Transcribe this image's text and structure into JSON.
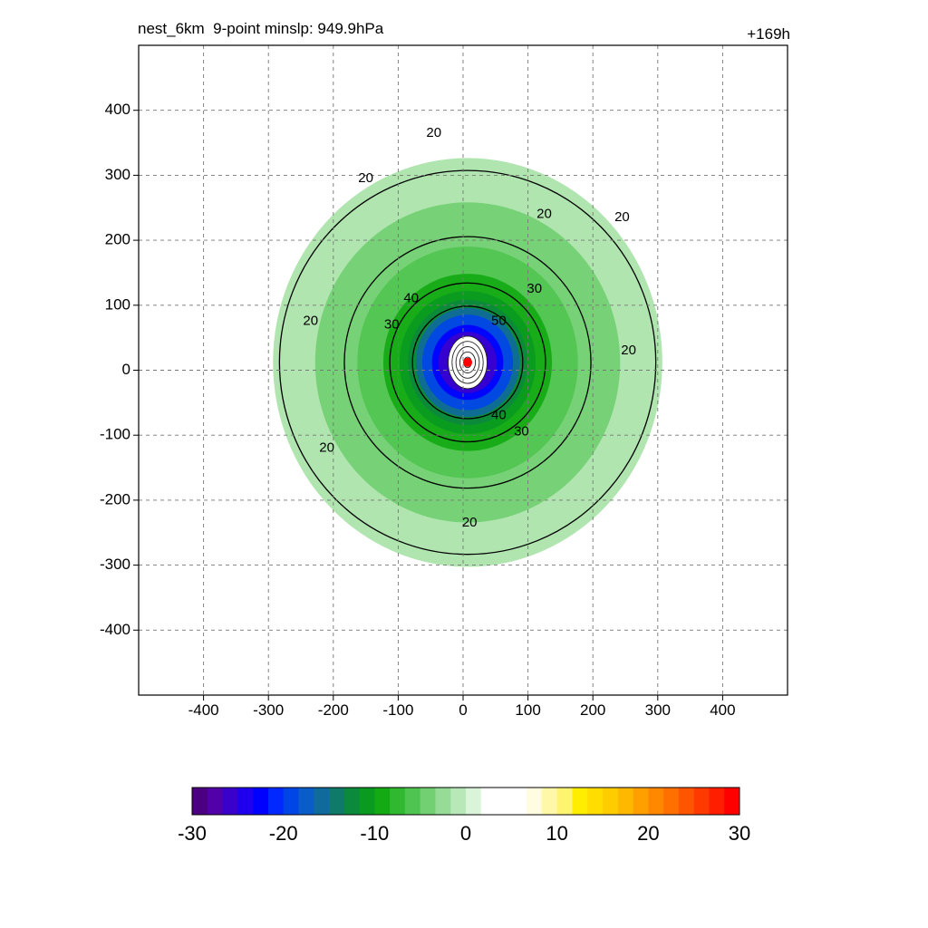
{
  "header": {
    "title": "nest_6km  9-point minslp: 949.9hPa",
    "forecast_time": "+169h"
  },
  "chart_data": {
    "type": "heatmap",
    "title": "nest_6km  9-point minslp: 949.9hPa",
    "forecast_time": "+169h",
    "min_slp_hpa": 949.9,
    "xlim": [
      -500,
      500
    ],
    "ylim": [
      -500,
      500
    ],
    "x_ticks": [
      -400,
      -300,
      -200,
      -100,
      0,
      100,
      200,
      300,
      400
    ],
    "y_ticks": [
      400,
      300,
      200,
      100,
      0,
      -100,
      -200,
      -300,
      -400
    ],
    "grid": true,
    "storm_center": {
      "x": 7,
      "y": 12,
      "color": "#ff0000"
    },
    "colorbar": {
      "min": -30,
      "max": 30,
      "tick_values": [
        -30,
        -20,
        -10,
        0,
        10,
        20,
        30
      ],
      "tick_labels": [
        "-30",
        "-20",
        "-10",
        "0",
        "10",
        "20",
        "30"
      ],
      "colors": [
        "#4b0082",
        "#5200a8",
        "#3a00cc",
        "#1f00ee",
        "#0000ff",
        "#0028ff",
        "#0046e6",
        "#0a5cc8",
        "#106a9c",
        "#0f7a6a",
        "#0c8a3c",
        "#0a9a20",
        "#14aa14",
        "#30b830",
        "#50c450",
        "#72d072",
        "#96dc96",
        "#b8e8b8",
        "#daf4da",
        "#ffffff",
        "#ffffff",
        "#ffffff",
        "#fffce0",
        "#fff8a8",
        "#fff470",
        "#ffee00",
        "#ffdd00",
        "#ffcc00",
        "#ffb800",
        "#ffa000",
        "#ff8800",
        "#ff7000",
        "#ff5500",
        "#ff3a00",
        "#ff1e00",
        "#ff0000"
      ]
    },
    "contour_levels": [
      20,
      30,
      40,
      50
    ],
    "contour_labels": [
      {
        "text": "20",
        "x": 125,
        "y": 240
      },
      {
        "text": "20",
        "x": 10,
        "y": -235
      },
      {
        "text": "20",
        "x": -210,
        "y": -120
      },
      {
        "text": "20",
        "x": -235,
        "y": 75
      },
      {
        "text": "20",
        "x": -150,
        "y": 295
      },
      {
        "text": "20",
        "x": -45,
        "y": 365
      },
      {
        "text": "20",
        "x": 245,
        "y": 235
      },
      {
        "text": "20",
        "x": 255,
        "y": 30
      },
      {
        "text": "30",
        "x": -110,
        "y": 70
      },
      {
        "text": "30",
        "x": 110,
        "y": 125
      },
      {
        "text": "30",
        "x": 90,
        "y": -95
      },
      {
        "text": "40",
        "x": -80,
        "y": 110
      },
      {
        "text": "40",
        "x": 55,
        "y": -70
      },
      {
        "text": "50",
        "x": 55,
        "y": 75
      }
    ],
    "bands": [
      {
        "r": 300,
        "color": "#96dc96"
      },
      {
        "r": 235,
        "color": "#72d072"
      },
      {
        "r": 170,
        "color": "#50c450"
      },
      {
        "r": 130,
        "color": "#14aa14"
      },
      {
        "r": 105,
        "color": "#0a9a20"
      },
      {
        "r": 92,
        "color": "#0c8a3c"
      },
      {
        "r": 80,
        "color": "#106a9c"
      },
      {
        "r": 70,
        "color": "#0046e6"
      },
      {
        "r": 55,
        "color": "#0000ff"
      },
      {
        "r": 45,
        "color": "#3a00cc"
      }
    ]
  }
}
